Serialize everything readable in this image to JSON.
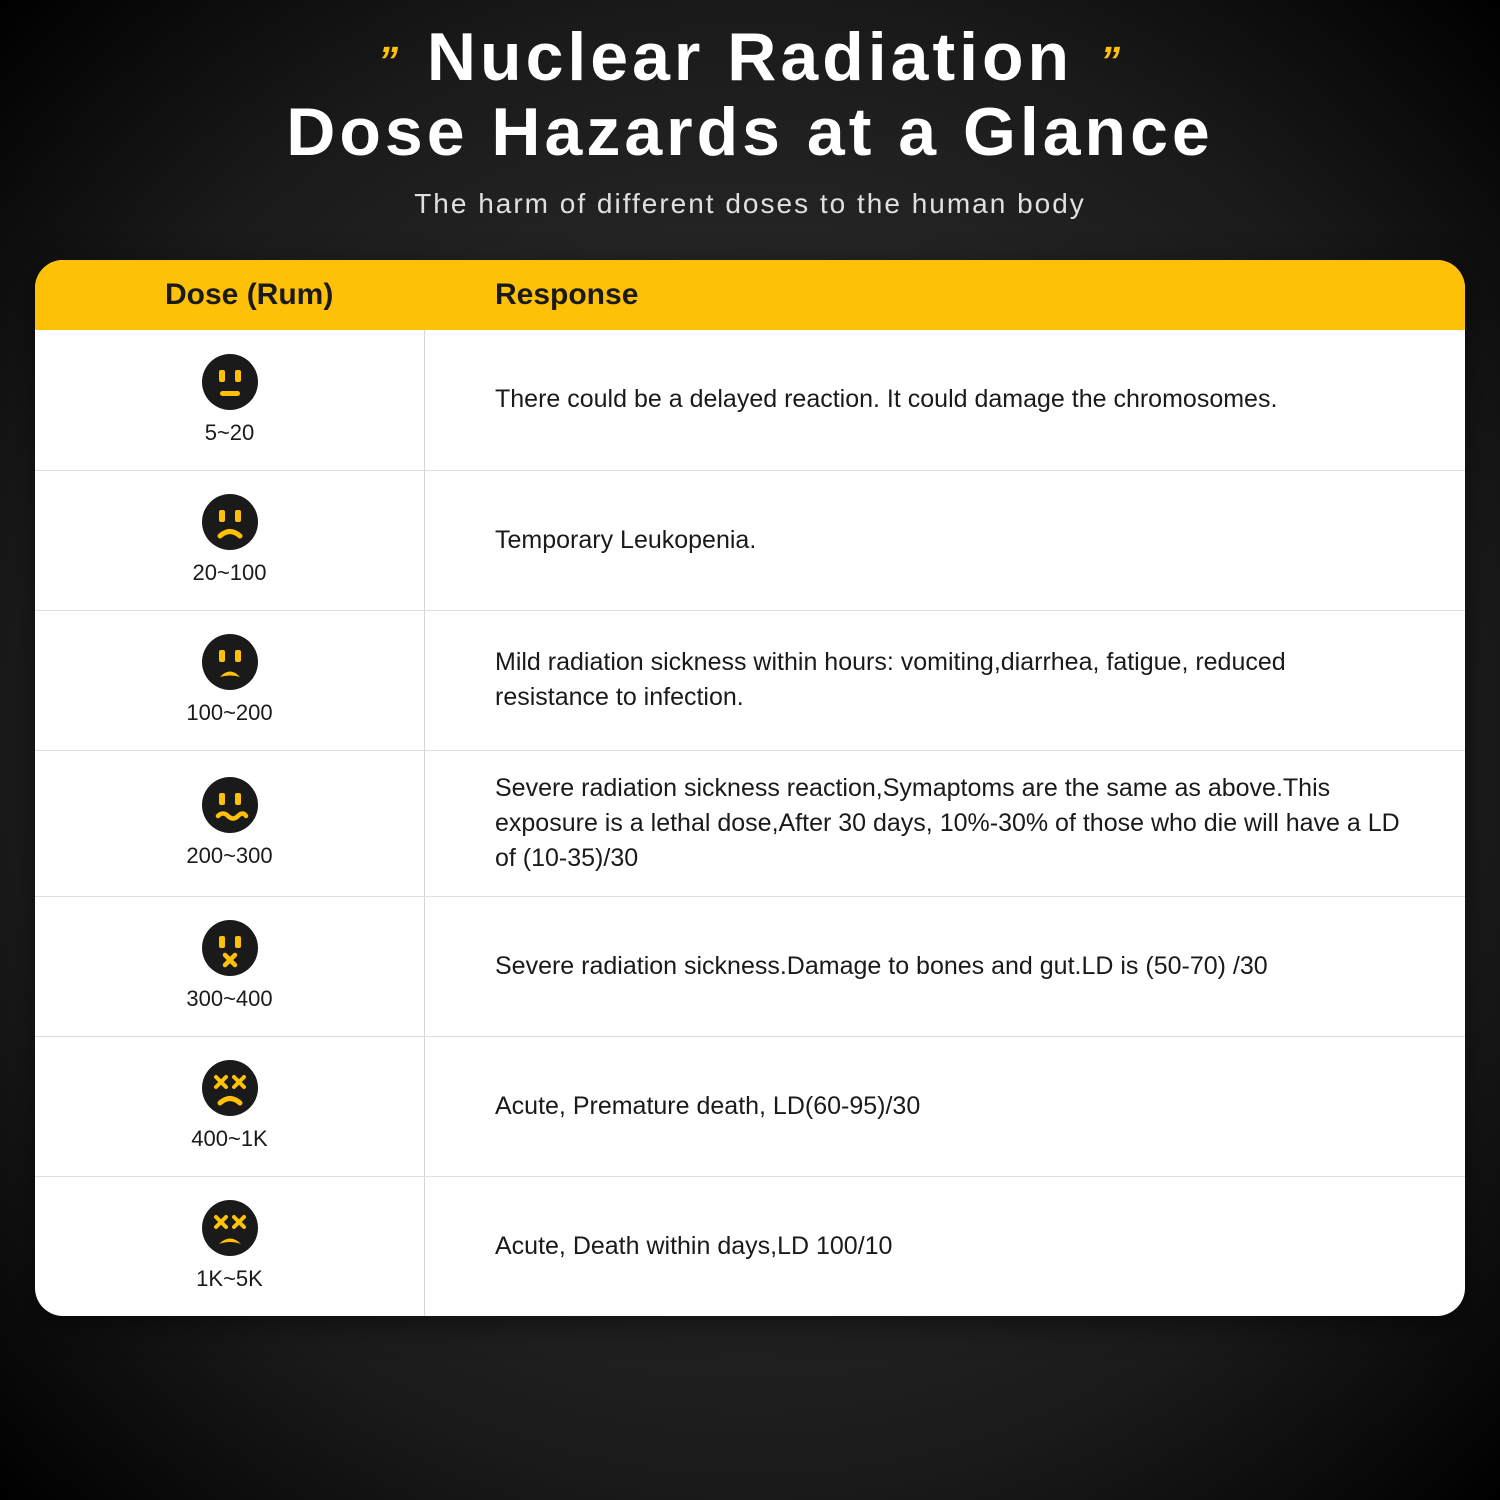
{
  "title_line1": "Nuclear Radiation",
  "title_line2": "Dose Hazards at a Glance",
  "subtitle": "The harm of different doses to the human body",
  "columns": {
    "dose": "Dose (Rum)",
    "response": "Response"
  },
  "colors": {
    "accent": "#ffc107",
    "card_bg": "#ffffff",
    "text_dark": "#1a1a1a",
    "text_light": "#ffffff",
    "divider": "#e0e0e0",
    "face_bg": "#1a1a1a",
    "face_feature": "#ffc107"
  },
  "rows": [
    {
      "dose": "5~20",
      "face": "neutral",
      "response": "There could be a delayed reaction. It could damage the chromosomes."
    },
    {
      "dose": "20~100",
      "face": "sad",
      "response": "Temporary Leukopenia."
    },
    {
      "dose": "100~200",
      "face": "sad_open",
      "response": "Mild radiation sickness within hours: vomiting,diarrhea, fatigue, reduced resistance to infection."
    },
    {
      "dose": "200~300",
      "face": "wavy",
      "response": "Severe radiation sickness reaction,Symaptoms are the same as above.This exposure is a lethal dose,After 30 days, 10%-30% of those who die will have a LD of (10-35)/30"
    },
    {
      "dose": "300~400",
      "face": "x_mouth",
      "response": "Severe radiation sickness.Damage to bones and gut.LD is (50-70) /30"
    },
    {
      "dose": "400~1K",
      "face": "dead_sad",
      "response": "Acute, Premature death, LD(60-95)/30"
    },
    {
      "dose": "1K~5K",
      "face": "dead_frown",
      "response": "Acute, Death within days,LD 100/10"
    }
  ]
}
